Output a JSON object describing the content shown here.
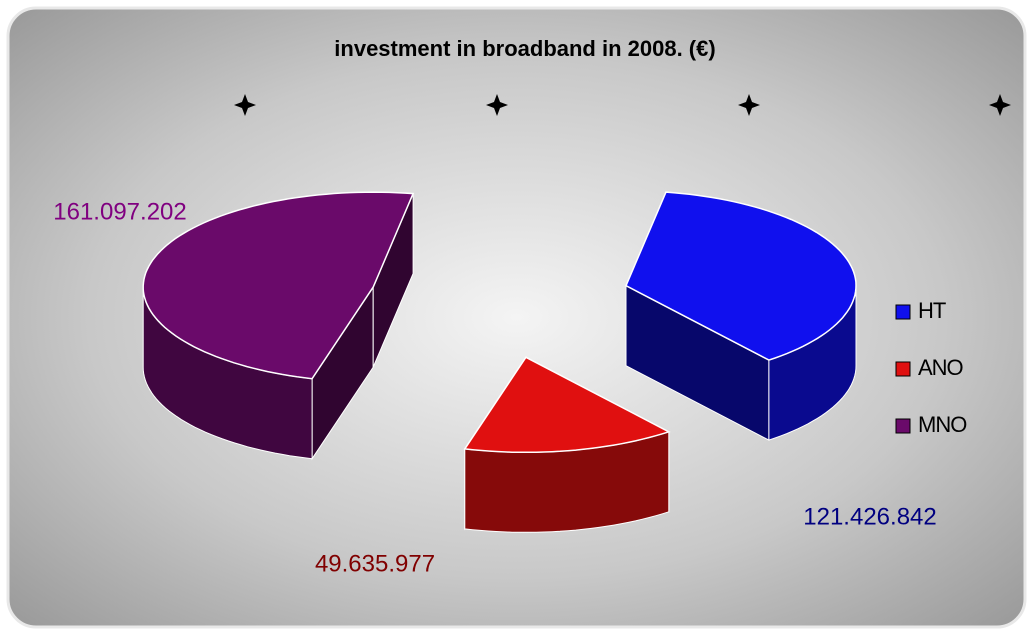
{
  "chart_data": {
    "type": "pie3d",
    "title": "investment in broadband in 2008. (€)",
    "categories": [
      "HT",
      "ANO",
      "MNO"
    ],
    "values": [
      121426842,
      49635977,
      161097202
    ],
    "value_labels": [
      "121.426.842",
      "49.635.977",
      "161.097.202"
    ],
    "colors": [
      "#1010ee",
      "#e01010",
      "#6a0a6a"
    ],
    "label_colors": [
      "#000080",
      "#800000",
      "#800080"
    ],
    "legend": "right"
  }
}
